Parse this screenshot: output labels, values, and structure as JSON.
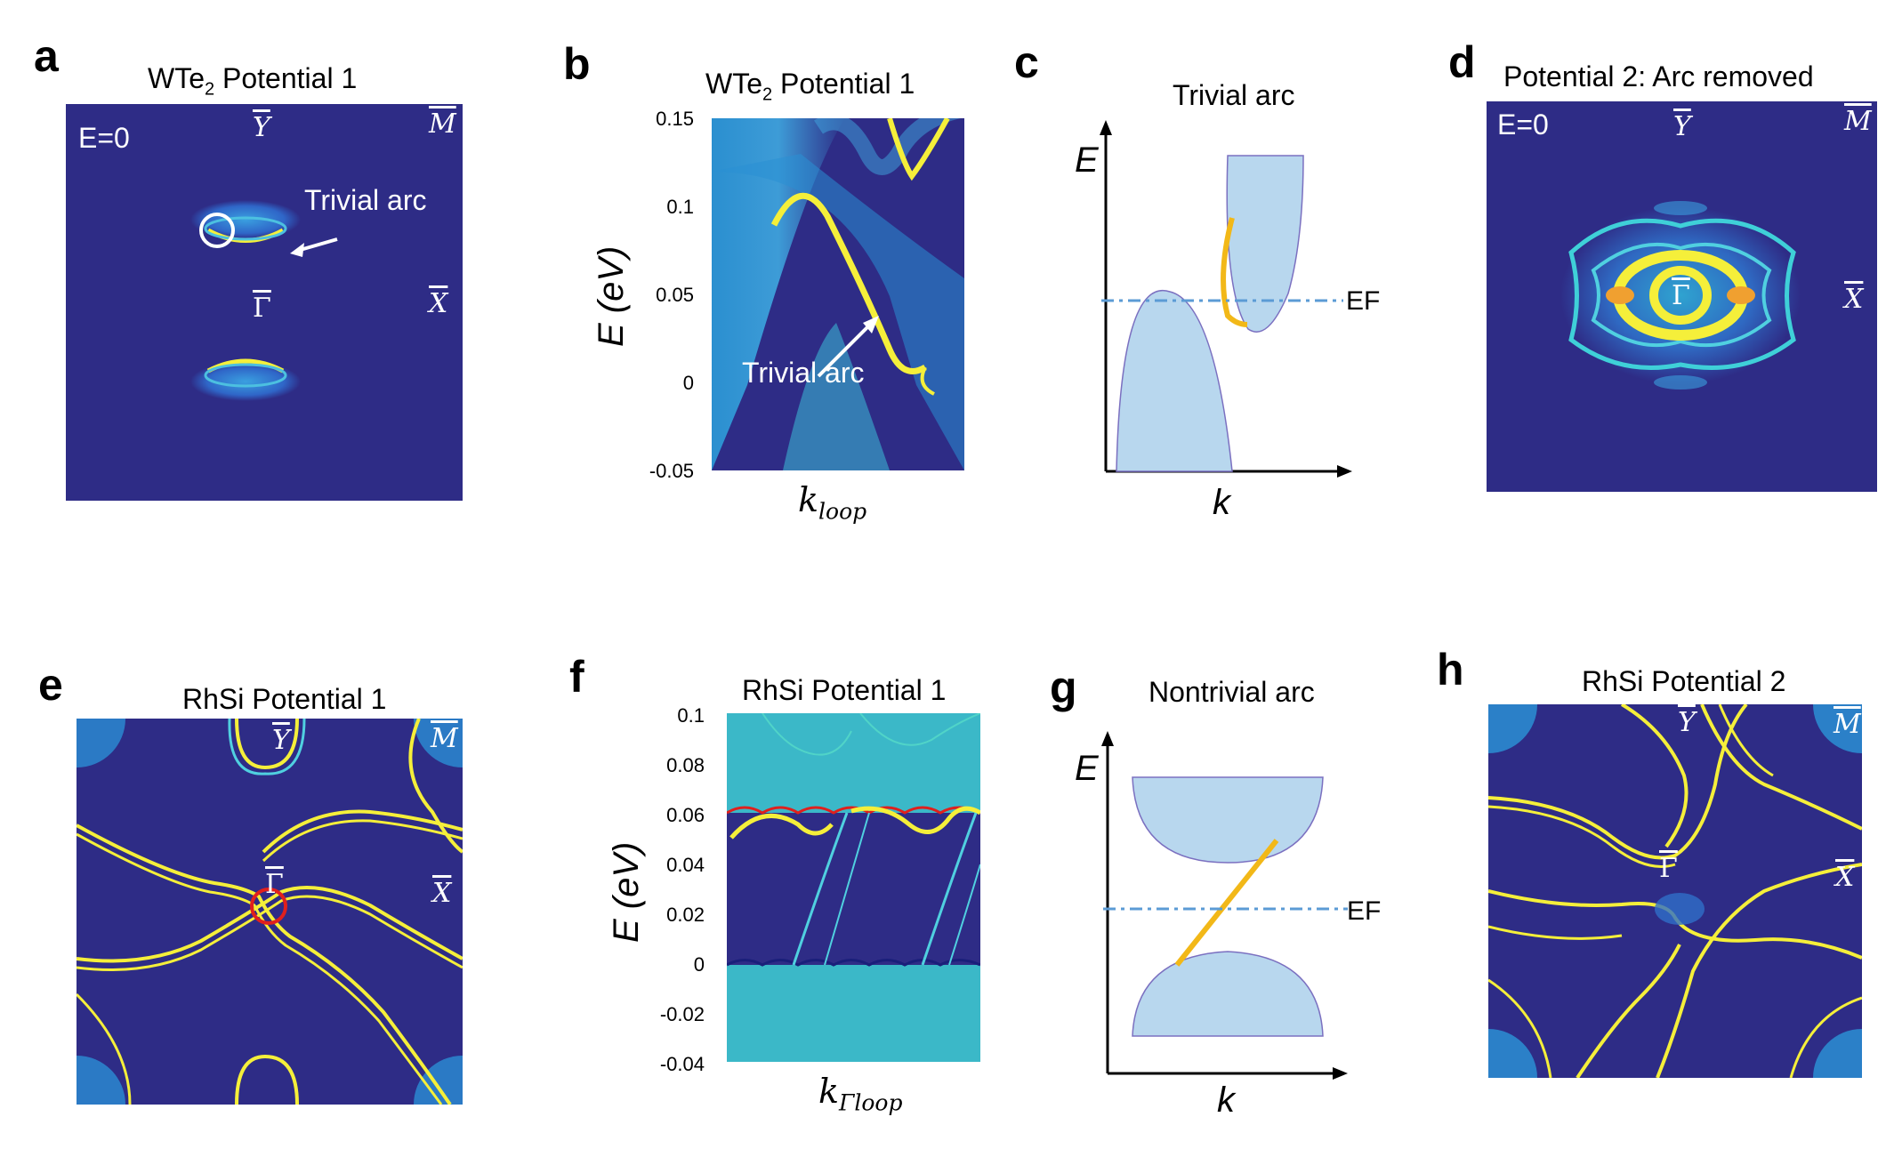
{
  "panels": {
    "a": {
      "label": "a",
      "title_main": "WTe",
      "title_sub": "2",
      "title_rest": " Potential 1",
      "energy": "E=0",
      "points": {
        "Y": "Y",
        "M": "M",
        "X": "X",
        "G": "Γ"
      },
      "annotation": "Trivial arc"
    },
    "b": {
      "label": "b",
      "title_main": "WTe",
      "title_sub": "2",
      "title_rest": " Potential 1",
      "ylabel": "E (eV)",
      "xlabel_main": "k",
      "xlabel_sub": "loop",
      "yticks": [
        "0.15",
        "0.1",
        "0.05",
        "0",
        "-0.05"
      ],
      "annotation": "Trivial arc"
    },
    "c": {
      "label": "c",
      "title": "Trivial arc",
      "ylabel": "E",
      "xlabel": "k",
      "ef": "EF"
    },
    "d": {
      "label": "d",
      "title": "Potential 2: Arc removed",
      "energy": "E=0",
      "points": {
        "Y": "Y",
        "M": "M",
        "X": "X",
        "G": "Γ"
      }
    },
    "e": {
      "label": "e",
      "title": "RhSi Potential 1",
      "points": {
        "Y": "Y",
        "M": "M",
        "X": "X",
        "G": "Γ"
      }
    },
    "f": {
      "label": "f",
      "title": "RhSi Potential 1",
      "ylabel": "E (eV)",
      "xlabel_main": "k",
      "xlabel_sub": "Γloop",
      "yticks": [
        "0.1",
        "0.08",
        "0.06",
        "0.04",
        "0.02",
        "0",
        "-0.02",
        "-0.04"
      ]
    },
    "g": {
      "label": "g",
      "title": "Nontrivial arc",
      "ylabel": "E",
      "xlabel": "k",
      "ef": "EF"
    },
    "h": {
      "label": "h",
      "title": "RhSi Potential 2",
      "points": {
        "Y": "Y",
        "M": "M",
        "X": "X",
        "G": "Γ"
      }
    }
  },
  "colors": {
    "background": "#2e2c86",
    "arc": "#f5ef3a",
    "cyan": "#2fa7d8",
    "band": "#b8d7ee",
    "orange": "#f2b818",
    "ef_line": "#5b9bd5",
    "red": "#e0201d"
  }
}
